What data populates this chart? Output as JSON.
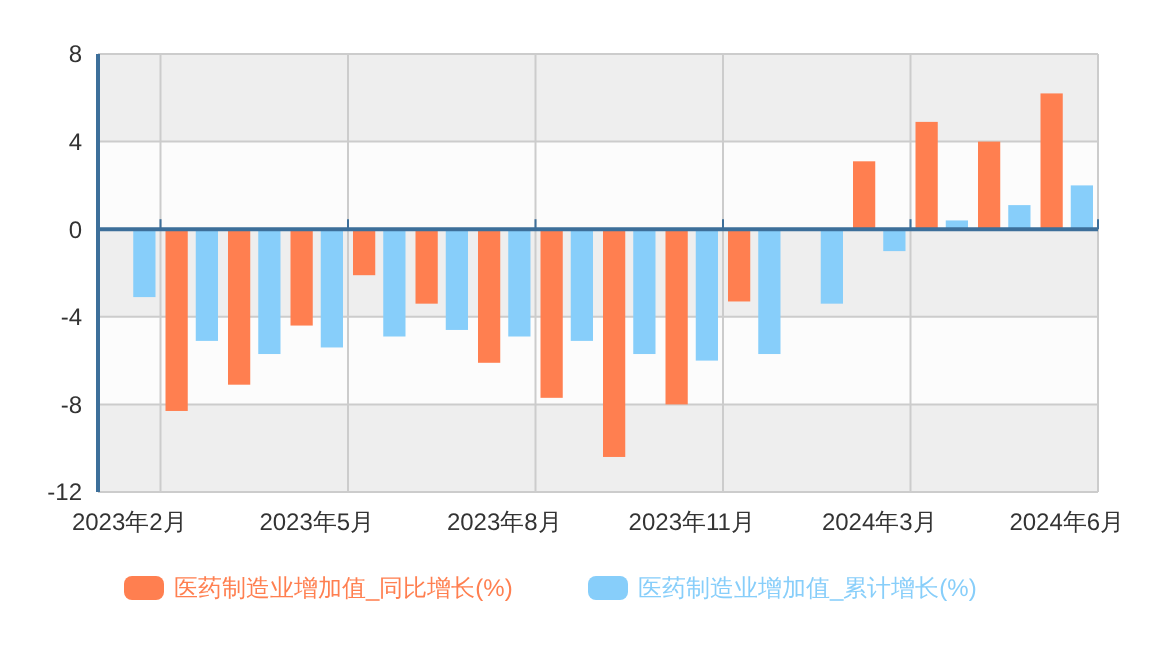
{
  "chart_data": {
    "type": "bar",
    "categories": [
      "2023年2月",
      null,
      null,
      "2023年5月",
      null,
      null,
      "2023年8月",
      null,
      null,
      "2023年11月",
      null,
      null,
      "2024年3月",
      null,
      null,
      "2024年6月"
    ],
    "series": [
      {
        "name": "医药制造业增加值_同比增长(%)",
        "color": "#ff7f50",
        "values": [
          null,
          -8.3,
          -7.1,
          -4.4,
          -2.1,
          -3.4,
          -6.1,
          -7.7,
          -10.4,
          -8.0,
          -3.3,
          null,
          3.1,
          4.9,
          4.0,
          6.2
        ]
      },
      {
        "name": "医药制造业增加值_累计增长(%)",
        "color": "#87cefa",
        "values": [
          -3.1,
          -5.1,
          -5.7,
          -5.4,
          -4.9,
          -4.6,
          -4.9,
          -5.1,
          -5.7,
          -6.0,
          -5.7,
          -3.4,
          -1.0,
          0.4,
          1.1,
          2.0
        ]
      }
    ],
    "ref_lines": [
      {
        "axis": "y",
        "value": 0,
        "color": "#3d6f9a"
      }
    ],
    "ylim": [
      -12,
      8
    ],
    "yticks": [
      -12,
      -8,
      -4,
      0,
      4,
      8
    ],
    "grid": true,
    "legend": "bottom"
  }
}
